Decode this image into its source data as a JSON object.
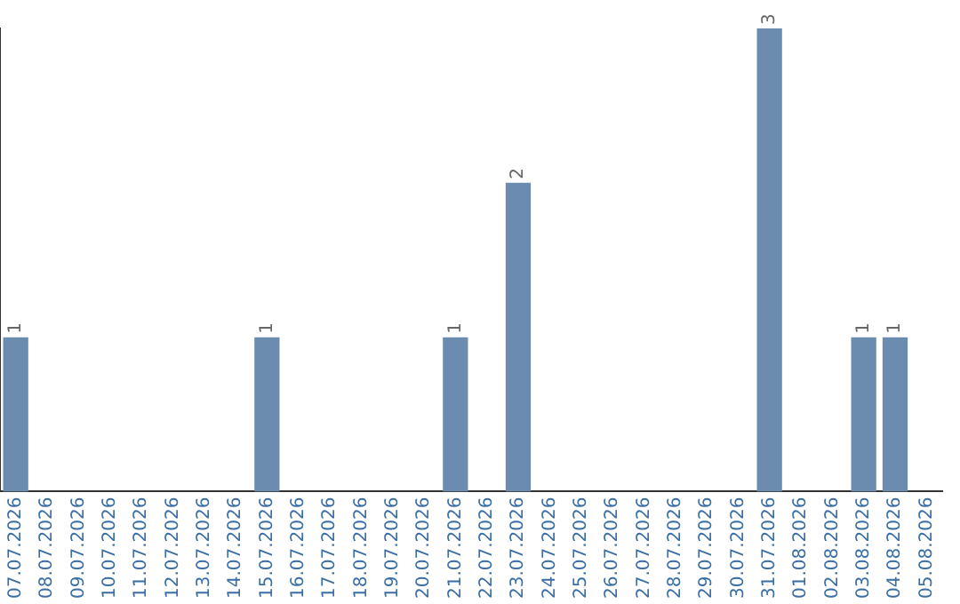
{
  "chart_data": {
    "type": "bar",
    "categories": [
      "07.07.2026",
      "08.07.2026",
      "09.07.2026",
      "10.07.2026",
      "11.07.2026",
      "12.07.2026",
      "13.07.2026",
      "14.07.2026",
      "15.07.2026",
      "16.07.2026",
      "17.07.2026",
      "18.07.2026",
      "19.07.2026",
      "20.07.2026",
      "21.07.2026",
      "22.07.2026",
      "23.07.2026",
      "24.07.2026",
      "25.07.2026",
      "26.07.2026",
      "27.07.2026",
      "28.07.2026",
      "29.07.2026",
      "30.07.2026",
      "31.07.2026",
      "01.08.2026",
      "02.08.2026",
      "03.08.2026",
      "04.08.2026",
      "05.08.2026"
    ],
    "values": [
      1,
      0,
      0,
      0,
      0,
      0,
      0,
      0,
      1,
      0,
      0,
      0,
      0,
      0,
      1,
      0,
      2,
      0,
      0,
      0,
      0,
      0,
      0,
      0,
      3,
      0,
      0,
      1,
      1,
      0
    ],
    "value_labels": [
      "1",
      null,
      null,
      null,
      null,
      null,
      null,
      null,
      "1",
      null,
      null,
      null,
      null,
      null,
      "1",
      null,
      "2",
      null,
      null,
      null,
      null,
      null,
      null,
      null,
      "3",
      null,
      null,
      "1",
      "1",
      null
    ],
    "color": "#6b8cae",
    "grid": false,
    "legend": false,
    "tick_labels": "x"
  }
}
